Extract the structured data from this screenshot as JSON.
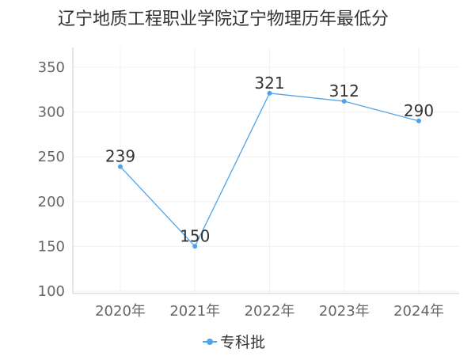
{
  "chart_data": {
    "type": "line",
    "title": "辽宁地质工程职业学院辽宁物理历年最低分",
    "categories": [
      "2020年",
      "2021年",
      "2022年",
      "2023年",
      "2024年"
    ],
    "series": [
      {
        "name": "专科批",
        "values": [
          239,
          150,
          321,
          312,
          290
        ],
        "color": "#4da3ea"
      }
    ],
    "ylim": [
      100,
      350
    ],
    "yticks": [
      100,
      150,
      200,
      250,
      300,
      350
    ],
    "xlabel": "",
    "ylabel": "",
    "grid": true,
    "legend": "bottom-center"
  }
}
